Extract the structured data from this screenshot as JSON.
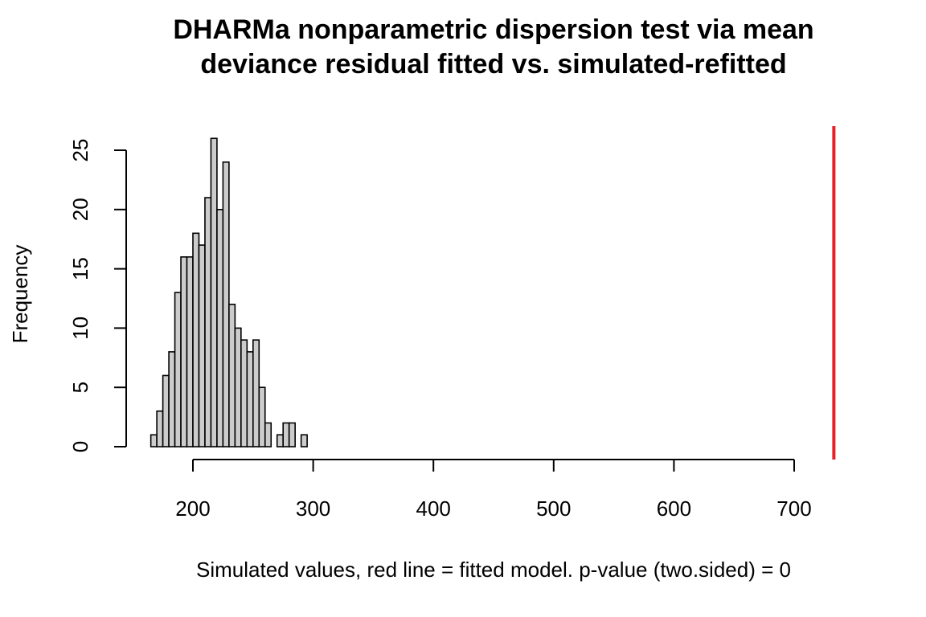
{
  "chart_data": {
    "type": "bar",
    "title_lines": [
      "DHARMa nonparametric dispersion test via mean",
      "deviance residual fitted vs. simulated-refitted"
    ],
    "xlabel": "Simulated values, red line = fitted model. p-value (two.sided) = 0",
    "ylabel": "Frequency",
    "xlim": [
      135,
      735
    ],
    "ylim": [
      0,
      26
    ],
    "x_ticks": [
      200,
      300,
      400,
      500,
      600,
      700
    ],
    "y_ticks": [
      0,
      5,
      10,
      15,
      20,
      25
    ],
    "bin_width": 5,
    "bins": [
      {
        "x0": 165,
        "count": 1
      },
      {
        "x0": 170,
        "count": 3
      },
      {
        "x0": 175,
        "count": 6
      },
      {
        "x0": 180,
        "count": 8
      },
      {
        "x0": 185,
        "count": 13
      },
      {
        "x0": 190,
        "count": 16
      },
      {
        "x0": 195,
        "count": 16
      },
      {
        "x0": 200,
        "count": 18
      },
      {
        "x0": 205,
        "count": 17
      },
      {
        "x0": 210,
        "count": 21
      },
      {
        "x0": 215,
        "count": 26
      },
      {
        "x0": 220,
        "count": 20
      },
      {
        "x0": 225,
        "count": 24
      },
      {
        "x0": 230,
        "count": 12
      },
      {
        "x0": 235,
        "count": 10
      },
      {
        "x0": 240,
        "count": 9
      },
      {
        "x0": 245,
        "count": 8
      },
      {
        "x0": 250,
        "count": 9
      },
      {
        "x0": 255,
        "count": 5
      },
      {
        "x0": 260,
        "count": 2
      },
      {
        "x0": 265,
        "count": 0
      },
      {
        "x0": 270,
        "count": 1
      },
      {
        "x0": 275,
        "count": 2
      },
      {
        "x0": 280,
        "count": 2
      },
      {
        "x0": 285,
        "count": 0
      },
      {
        "x0": 290,
        "count": 1
      }
    ],
    "observed_value": 733,
    "colors": {
      "bar_fill": "#cccccc",
      "bar_stroke": "#000000",
      "observed_line": "#e8202a"
    }
  }
}
